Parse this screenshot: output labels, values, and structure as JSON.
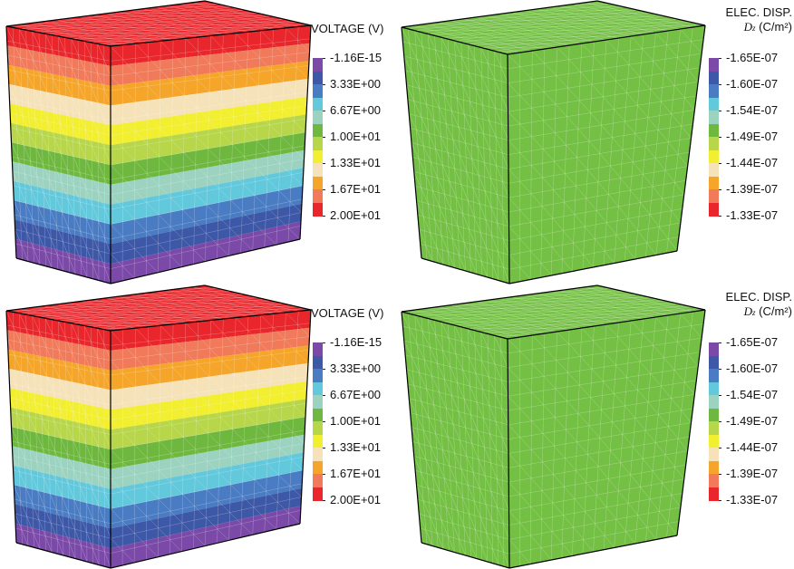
{
  "colors": {
    "voltage_bands": [
      "#7b4aa8",
      "#3e58a8",
      "#4a7cc3",
      "#62c8dc",
      "#9bd2c0",
      "#6fb83f",
      "#b7d64a",
      "#f2ee30",
      "#f5e2b8",
      "#f5a52a",
      "#f07a5a",
      "#e8262b"
    ],
    "dz_uniform": "#74c044",
    "dz_legend": [
      "#7b4aa8",
      "#3e58a8",
      "#4a7cc3",
      "#62c8dc",
      "#9bd2c0",
      "#6fb83f",
      "#b7d64a",
      "#f2ee30",
      "#f5e2b8",
      "#f5a52a",
      "#f07a5a",
      "#e8262b"
    ]
  },
  "panels": [
    {
      "voltage": {
        "title": "VOLTAGE (V)",
        "ticks": [
          "-1.16E-15",
          "3.33E+00",
          "6.67E+00",
          "1.00E+01",
          "1.33E+01",
          "1.67E+01",
          "2.00E+01"
        ]
      },
      "dz": {
        "title_line1": "ELEC. DISP.",
        "symbol": "D",
        "symbol_sub": "z",
        "unit": "(C/m²)",
        "ticks": [
          "-1.65E-07",
          "-1.60E-07",
          "-1.54E-07",
          "-1.49E-07",
          "-1.44E-07",
          "-1.39E-07",
          "-1.33E-07"
        ]
      }
    },
    {
      "voltage": {
        "title": "VOLTAGE (V)",
        "ticks": [
          "-1.16E-15",
          "3.33E+00",
          "6.67E+00",
          "1.00E+01",
          "1.33E+01",
          "1.67E+01",
          "2.00E+01"
        ]
      },
      "dz": {
        "title_line1": "ELEC. DISP.",
        "symbol": "D",
        "symbol_sub": "z",
        "unit": "(C/m²)",
        "ticks": [
          "-1.65E-07",
          "-1.60E-07",
          "-1.54E-07",
          "-1.49E-07",
          "-1.44E-07",
          "-1.39E-07",
          "-1.33E-07"
        ]
      }
    }
  ]
}
